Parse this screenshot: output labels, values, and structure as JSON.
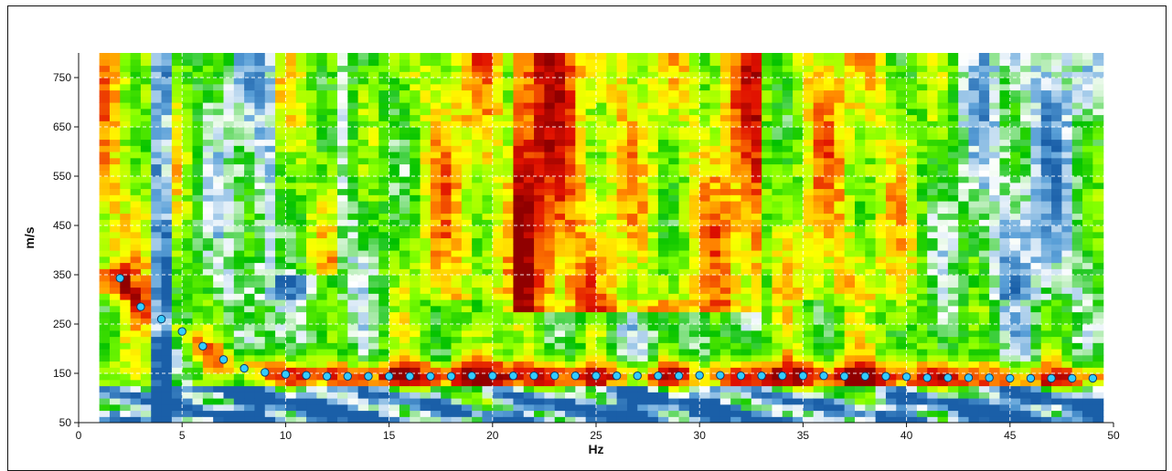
{
  "chart_data": {
    "type": "heatmap",
    "title": "",
    "xlabel": "Hz",
    "ylabel": "m/s",
    "xlim": [
      0,
      50
    ],
    "ylim": [
      50,
      800
    ],
    "x_ticks": [
      0,
      5,
      10,
      15,
      20,
      25,
      30,
      35,
      40,
      45,
      50
    ],
    "y_ticks": [
      50,
      150,
      250,
      350,
      450,
      550,
      650,
      750
    ],
    "x_tick_labels": [
      "0",
      "5",
      "10",
      "15",
      "20",
      "25",
      "30",
      "35",
      "40",
      "45",
      "50"
    ],
    "y_tick_labels": [
      "50",
      "150",
      "250",
      "350",
      "450",
      "550",
      "650",
      "750"
    ],
    "grid": true,
    "heatmap_extent": {
      "x": [
        1,
        49.5
      ],
      "y": [
        50,
        800
      ]
    },
    "colormap": [
      "#1a5fa8",
      "#5aa0d8",
      "#ffffff",
      "#00c000",
      "#80ff00",
      "#ffff00",
      "#ff8000",
      "#e01000",
      "#900000"
    ],
    "series": [
      {
        "name": "",
        "type": "scatter",
        "x": [
          2,
          3,
          4,
          5,
          6,
          7,
          8,
          9,
          10,
          11,
          12,
          13,
          14,
          15,
          16,
          17,
          18,
          19,
          20,
          21,
          22,
          23,
          24,
          25,
          26,
          27,
          28,
          29,
          30,
          31,
          32,
          33,
          34,
          35,
          36,
          37,
          38,
          39,
          40,
          41,
          42,
          43,
          44,
          45,
          46,
          47,
          48,
          49
        ],
        "y": [
          343,
          285,
          260,
          235,
          205,
          178,
          160,
          152,
          148,
          146,
          144,
          144,
          144,
          144,
          144,
          144,
          144,
          145,
          145,
          145,
          145,
          145,
          145,
          145,
          145,
          145,
          145,
          145,
          146,
          146,
          145,
          145,
          145,
          145,
          145,
          144,
          144,
          144,
          143,
          141,
          141,
          141,
          141,
          140,
          140,
          140,
          140,
          140
        ]
      }
    ],
    "colors": {
      "point_fill": "#33ccff",
      "point_stroke": "#0b3b6b",
      "grid": "#ffffff"
    }
  }
}
